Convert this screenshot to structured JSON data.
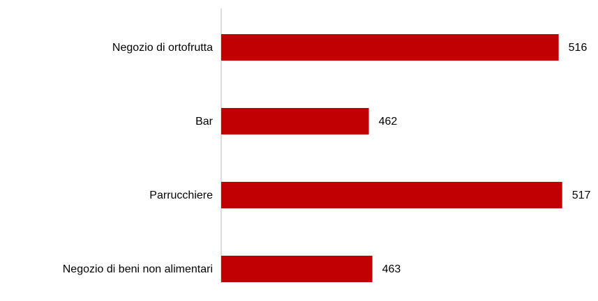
{
  "chart_data": {
    "type": "hbar",
    "categories": [
      "Negozio di ortofrutta",
      "Bar",
      "Parrucchiere",
      "Negozio di beni non alimentari"
    ],
    "values": [
      516,
      462,
      517,
      463
    ],
    "color": "#c00000",
    "xlim": [
      420,
      525
    ]
  }
}
